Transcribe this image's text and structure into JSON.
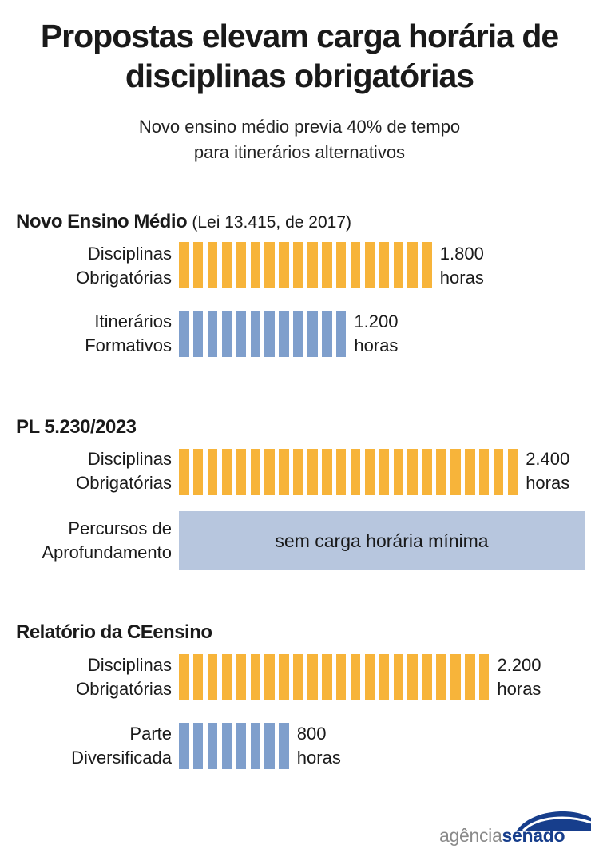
{
  "title": [
    "Propostas elevam carga horária de",
    "disciplinas obrigatórias"
  ],
  "subtitle": [
    "Novo ensino médio previa 40% de tempo",
    "para itinerários alternativos"
  ],
  "colors": {
    "mandatory": "#f7b43a",
    "elective": "#7f9fcc",
    "no_minimum": "#b7c6de"
  },
  "unit_hours_per_segment": 100,
  "sections": [
    {
      "title": "Novo Ensino Médio",
      "note": "(Lei 13.415, de 2017)"
    },
    {
      "title": "PL 5.230/2023",
      "note": ""
    },
    {
      "title": "Relatório da CEensino",
      "note": ""
    }
  ],
  "rows": [
    {
      "label": [
        "Disciplinas",
        "Obrigatórias"
      ],
      "value_label": [
        "1.800",
        "horas"
      ]
    },
    {
      "label": [
        "Itinerários",
        "Formativos"
      ],
      "value_label": [
        "1.200",
        "horas"
      ]
    },
    {
      "label": [
        "Disciplinas",
        "Obrigatórias"
      ],
      "value_label": [
        "2.400",
        "horas"
      ]
    },
    {
      "label": [
        "Percursos de",
        "Aprofundamento"
      ],
      "value_label": [
        "",
        ""
      ]
    },
    {
      "label": [
        "Disciplinas",
        "Obrigatórias"
      ],
      "value_label": [
        "2.200",
        "horas"
      ]
    },
    {
      "label": [
        "Parte",
        "Diversificada"
      ],
      "value_label": [
        "800",
        "horas"
      ]
    }
  ],
  "no_minimum_text": "sem carga horária mínima",
  "chart_data": {
    "type": "bar",
    "title": "Propostas elevam carga horária de disciplinas obrigatórias",
    "subtitle": "Novo ensino médio previa 40% de tempo para itinerários alternativos",
    "groups": [
      {
        "name": "Novo Ensino Médio (Lei 13.415, de 2017)",
        "bars": [
          {
            "label": "Disciplinas Obrigatórias",
            "value": 1800,
            "kind": "mandatory"
          },
          {
            "label": "Itinerários Formativos",
            "value": 1200,
            "kind": "elective"
          }
        ]
      },
      {
        "name": "PL 5.230/2023",
        "bars": [
          {
            "label": "Disciplinas Obrigatórias",
            "value": 2400,
            "kind": "mandatory"
          },
          {
            "label": "Percursos de Aprofundamento",
            "value": null,
            "kind": "no_minimum",
            "text": "sem carga horária mínima"
          }
        ]
      },
      {
        "name": "Relatório da CEensino",
        "bars": [
          {
            "label": "Disciplinas Obrigatórias",
            "value": 2200,
            "kind": "mandatory"
          },
          {
            "label": "Parte Diversificada",
            "value": 800,
            "kind": "elective"
          }
        ]
      }
    ],
    "value_unit": "horas"
  },
  "logo": {
    "part1": "agência",
    "part2": "senado"
  }
}
